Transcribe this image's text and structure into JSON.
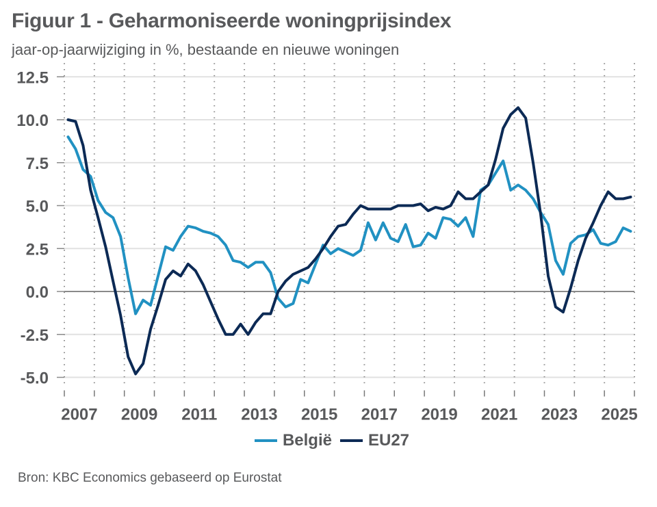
{
  "header": {
    "title": "Figuur 1 - Geharmoniseerde woningprijsindex",
    "subtitle": "jaar-op-jaarwijziging in %, bestaande en nieuwe woningen"
  },
  "footer": {
    "source": "Bron: KBC Economics gebaseerd op Eurostat"
  },
  "chart_data": {
    "type": "line",
    "title": "Figuur 1 - Geharmoniseerde woningprijsindex",
    "subtitle": "jaar-op-jaarwijziging in %, bestaande en nieuwe woningen",
    "xlabel": "",
    "ylabel": "",
    "frequency": "quarterly",
    "x_start": "2007Q1",
    "x_end": "2025Q4",
    "xlim": [
      2007,
      2026
    ],
    "ylim": [
      -5.0,
      12.5
    ],
    "yticks": [
      12.5,
      10.0,
      7.5,
      5.0,
      2.5,
      0.0,
      -2.5,
      -5.0
    ],
    "ytick_labels": [
      "12.5",
      "10.0",
      "7.5",
      "5.0",
      "2.5",
      "0.0",
      "-2.5",
      "-5.0"
    ],
    "xtick_labels": [
      "2007",
      "2009",
      "2011",
      "2013",
      "2015",
      "2017",
      "2019",
      "2021",
      "2023",
      "2025"
    ],
    "xtick_years": [
      2007,
      2009,
      2011,
      2013,
      2015,
      2017,
      2019,
      2021,
      2023,
      2025
    ],
    "grid": "horizontal solid at y ticks, vertical dotted at every year",
    "legend_position": "bottom-center",
    "series": [
      {
        "name": "België",
        "color": "#2191c2",
        "values": [
          9.0,
          8.3,
          7.1,
          6.7,
          5.3,
          4.6,
          4.3,
          3.2,
          0.8,
          -1.3,
          -0.5,
          -0.8,
          0.9,
          2.6,
          2.4,
          3.2,
          3.8,
          3.7,
          3.5,
          3.4,
          3.2,
          2.7,
          1.8,
          1.7,
          1.4,
          1.7,
          1.7,
          1.1,
          -0.4,
          -0.9,
          -0.7,
          0.7,
          0.5,
          1.6,
          2.7,
          2.2,
          2.5,
          2.3,
          2.1,
          2.4,
          4.0,
          3.0,
          4.0,
          3.1,
          2.9,
          3.9,
          2.6,
          2.7,
          3.4,
          3.1,
          4.3,
          4.2,
          3.8,
          4.3,
          3.2,
          5.9,
          6.2,
          6.9,
          7.6,
          5.9,
          6.2,
          5.9,
          5.4,
          4.6,
          3.9,
          1.8,
          1.0,
          2.8,
          3.2,
          3.3,
          3.6,
          2.8,
          2.7,
          2.9,
          3.7,
          3.5
        ]
      },
      {
        "name": "EU27",
        "color": "#0c2a55",
        "values": [
          10.0,
          9.9,
          8.5,
          5.9,
          4.3,
          2.6,
          0.6,
          -1.4,
          -3.8,
          -4.8,
          -4.2,
          -2.2,
          -0.8,
          0.7,
          1.2,
          0.9,
          1.6,
          1.2,
          0.4,
          -0.6,
          -1.6,
          -2.5,
          -2.5,
          -1.9,
          -2.5,
          -1.8,
          -1.3,
          -1.3,
          0.0,
          0.6,
          1.0,
          1.2,
          1.4,
          1.9,
          2.5,
          3.2,
          3.8,
          3.9,
          4.5,
          5.0,
          4.8,
          4.8,
          4.8,
          4.8,
          5.0,
          5.0,
          5.0,
          5.1,
          4.7,
          4.9,
          4.8,
          5.0,
          5.8,
          5.4,
          5.4,
          5.8,
          6.2,
          7.7,
          9.5,
          10.3,
          10.7,
          10.1,
          7.5,
          4.5,
          0.9,
          -0.9,
          -1.2,
          0.2,
          1.8,
          3.1,
          4.0,
          5.0,
          5.8,
          5.4,
          5.4,
          5.5
        ]
      }
    ]
  }
}
